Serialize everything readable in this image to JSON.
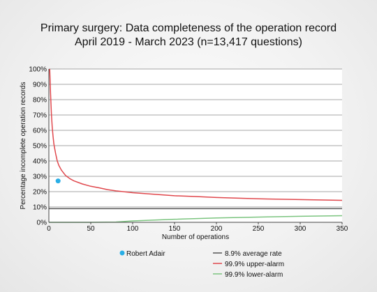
{
  "chart_data": {
    "type": "line",
    "title": "Primary surgery: Data completeness of the operation record",
    "subtitle": "April 2019 - March 2023 (n=13,417 questions)",
    "xlabel": "Number of operations",
    "ylabel": "Percentage incomplete operation records",
    "xlim": [
      0,
      350
    ],
    "ylim": [
      0,
      100
    ],
    "x_ticks": [
      0,
      50,
      100,
      150,
      200,
      250,
      300,
      350
    ],
    "y_ticks": [
      0,
      10,
      20,
      30,
      40,
      50,
      60,
      70,
      80,
      90,
      100
    ],
    "y_tick_labels": [
      "0%",
      "10%",
      "20%",
      "30%",
      "40%",
      "50%",
      "60%",
      "70%",
      "80%",
      "90%",
      "100%"
    ],
    "grid": true,
    "series": [
      {
        "name": "8.9% average rate",
        "kind": "line",
        "color": "#555555",
        "x": [
          0,
          350
        ],
        "y": [
          8.9,
          8.9
        ]
      },
      {
        "name": "99.9% upper-alarm",
        "kind": "line",
        "color": "#e0474c",
        "x": [
          1,
          2,
          3,
          4,
          5,
          6,
          8,
          10,
          12,
          15,
          20,
          25,
          30,
          40,
          50,
          60,
          70,
          80,
          100,
          120,
          150,
          175,
          200,
          250,
          300,
          350
        ],
        "y": [
          100,
          84,
          71,
          62,
          56,
          51,
          45,
          40,
          37,
          34,
          30.5,
          28.5,
          27,
          25,
          23.5,
          22.5,
          21.3,
          20.5,
          19.3,
          18.5,
          17.3,
          16.8,
          16.2,
          15.3,
          14.8,
          14.3
        ]
      },
      {
        "name": "99.9% lower-alarm",
        "kind": "line",
        "color": "#7bc47f",
        "x": [
          0,
          50,
          80,
          100,
          150,
          200,
          250,
          300,
          350
        ],
        "y": [
          0,
          0,
          0.2,
          0.9,
          2.0,
          2.8,
          3.4,
          3.9,
          4.3
        ]
      },
      {
        "name": "Robert Adair",
        "kind": "point",
        "color": "#29aee6",
        "x": [
          11
        ],
        "y": [
          27
        ]
      }
    ],
    "legend_position": "bottom"
  }
}
